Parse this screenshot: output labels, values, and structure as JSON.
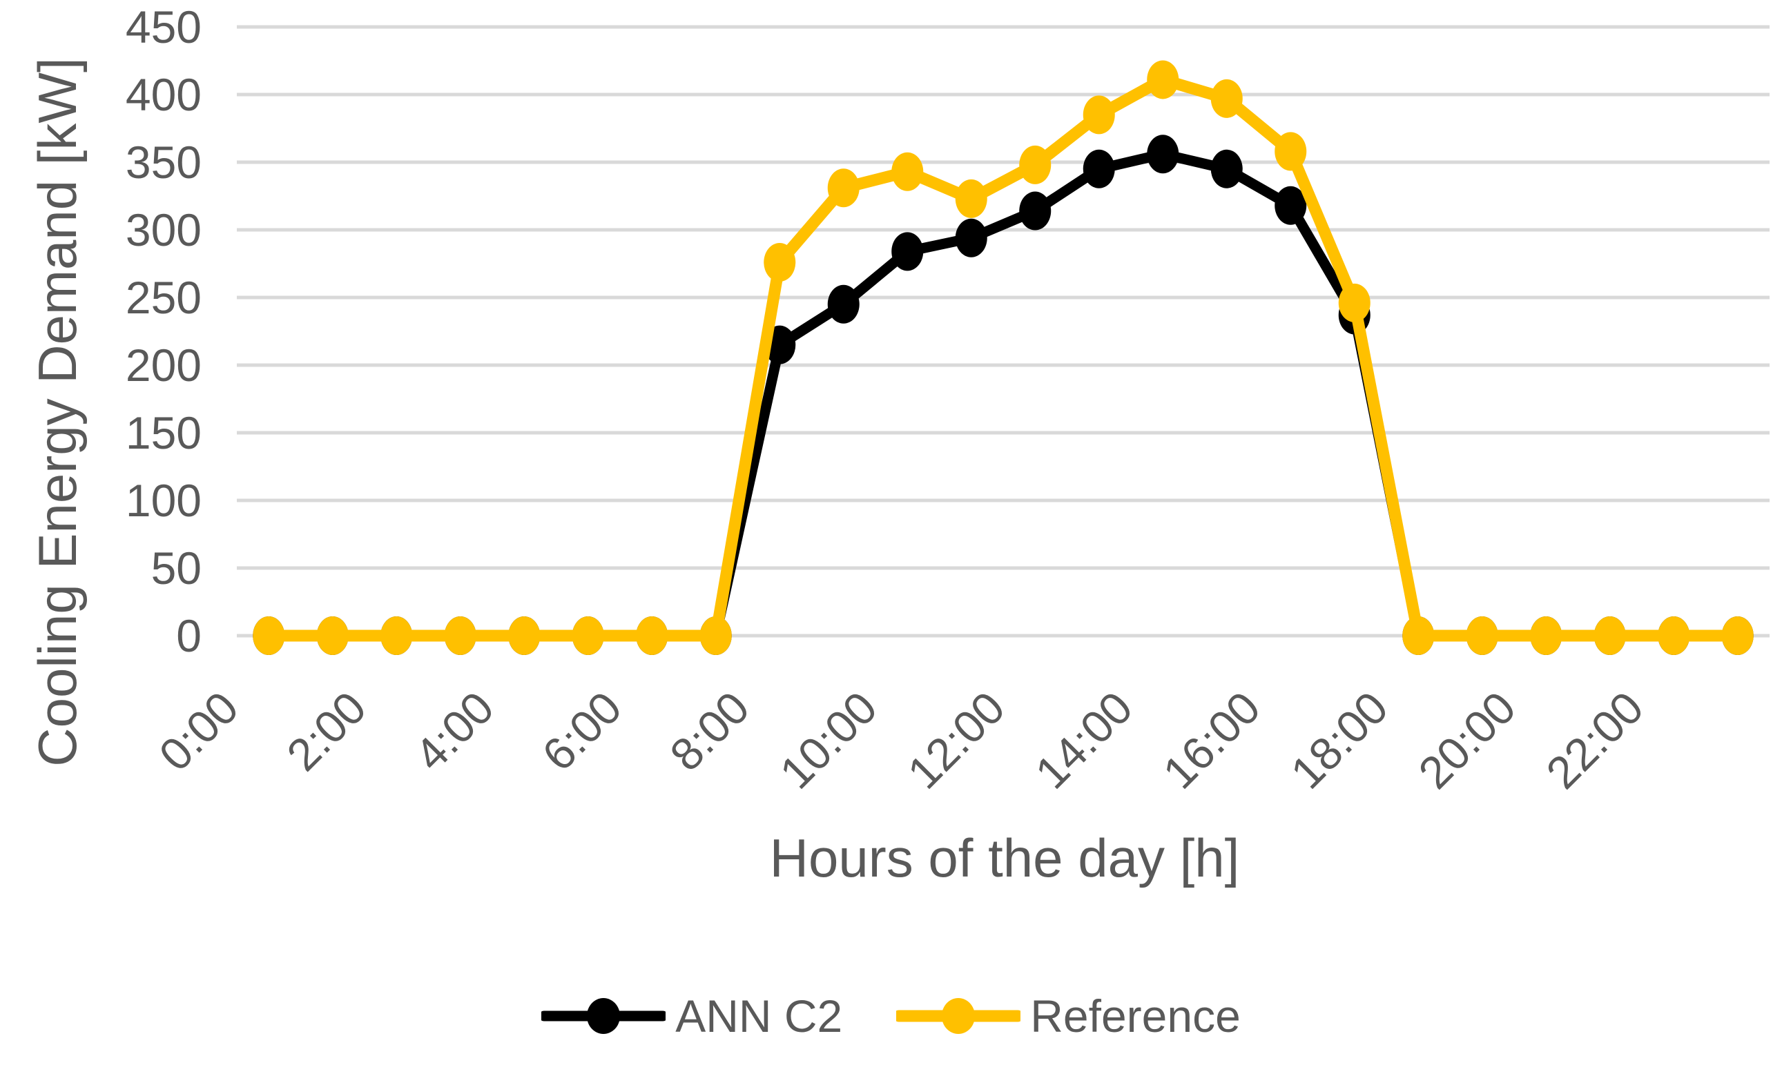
{
  "chart_data": {
    "type": "line",
    "title": "",
    "xlabel": "Hours of the day [h]",
    "ylabel": "Cooling Energy Demand [kW]",
    "categories": [
      "0:00",
      "1:00",
      "2:00",
      "3:00",
      "4:00",
      "5:00",
      "6:00",
      "7:00",
      "8:00",
      "9:00",
      "10:00",
      "11:00",
      "12:00",
      "13:00",
      "14:00",
      "15:00",
      "16:00",
      "17:00",
      "18:00",
      "19:00",
      "20:00",
      "21:00",
      "22:00",
      "23:00"
    ],
    "x_tick_every": 2,
    "x_tick_labels": [
      "0:00",
      "2:00",
      "4:00",
      "6:00",
      "8:00",
      "10:00",
      "12:00",
      "14:00",
      "16:00",
      "18:00",
      "20:00",
      "22:00"
    ],
    "ylim": [
      0,
      450
    ],
    "ytick_step": 50,
    "y_tick_labels": [
      "0",
      "50",
      "100",
      "150",
      "200",
      "250",
      "300",
      "350",
      "400",
      "450"
    ],
    "grid": "horizontal",
    "legend_position": "bottom",
    "colors": {
      "grid": "#D9D9D9",
      "axis_text": "#595959",
      "background": "#FFFFFF"
    },
    "series": [
      {
        "name": "ANN C2",
        "color": "#000000",
        "marker": "circle",
        "values": [
          0,
          0,
          0,
          0,
          0,
          0,
          0,
          0,
          215,
          245,
          284,
          294,
          314,
          345,
          356,
          345,
          318,
          237,
          0,
          0,
          0,
          0,
          0,
          0
        ]
      },
      {
        "name": "Reference",
        "color": "#FFC000",
        "marker": "circle",
        "values": [
          0,
          0,
          0,
          0,
          0,
          0,
          0,
          0,
          276,
          331,
          343,
          323,
          348,
          385,
          411,
          397,
          358,
          246,
          0,
          0,
          0,
          0,
          0,
          0
        ]
      }
    ]
  }
}
